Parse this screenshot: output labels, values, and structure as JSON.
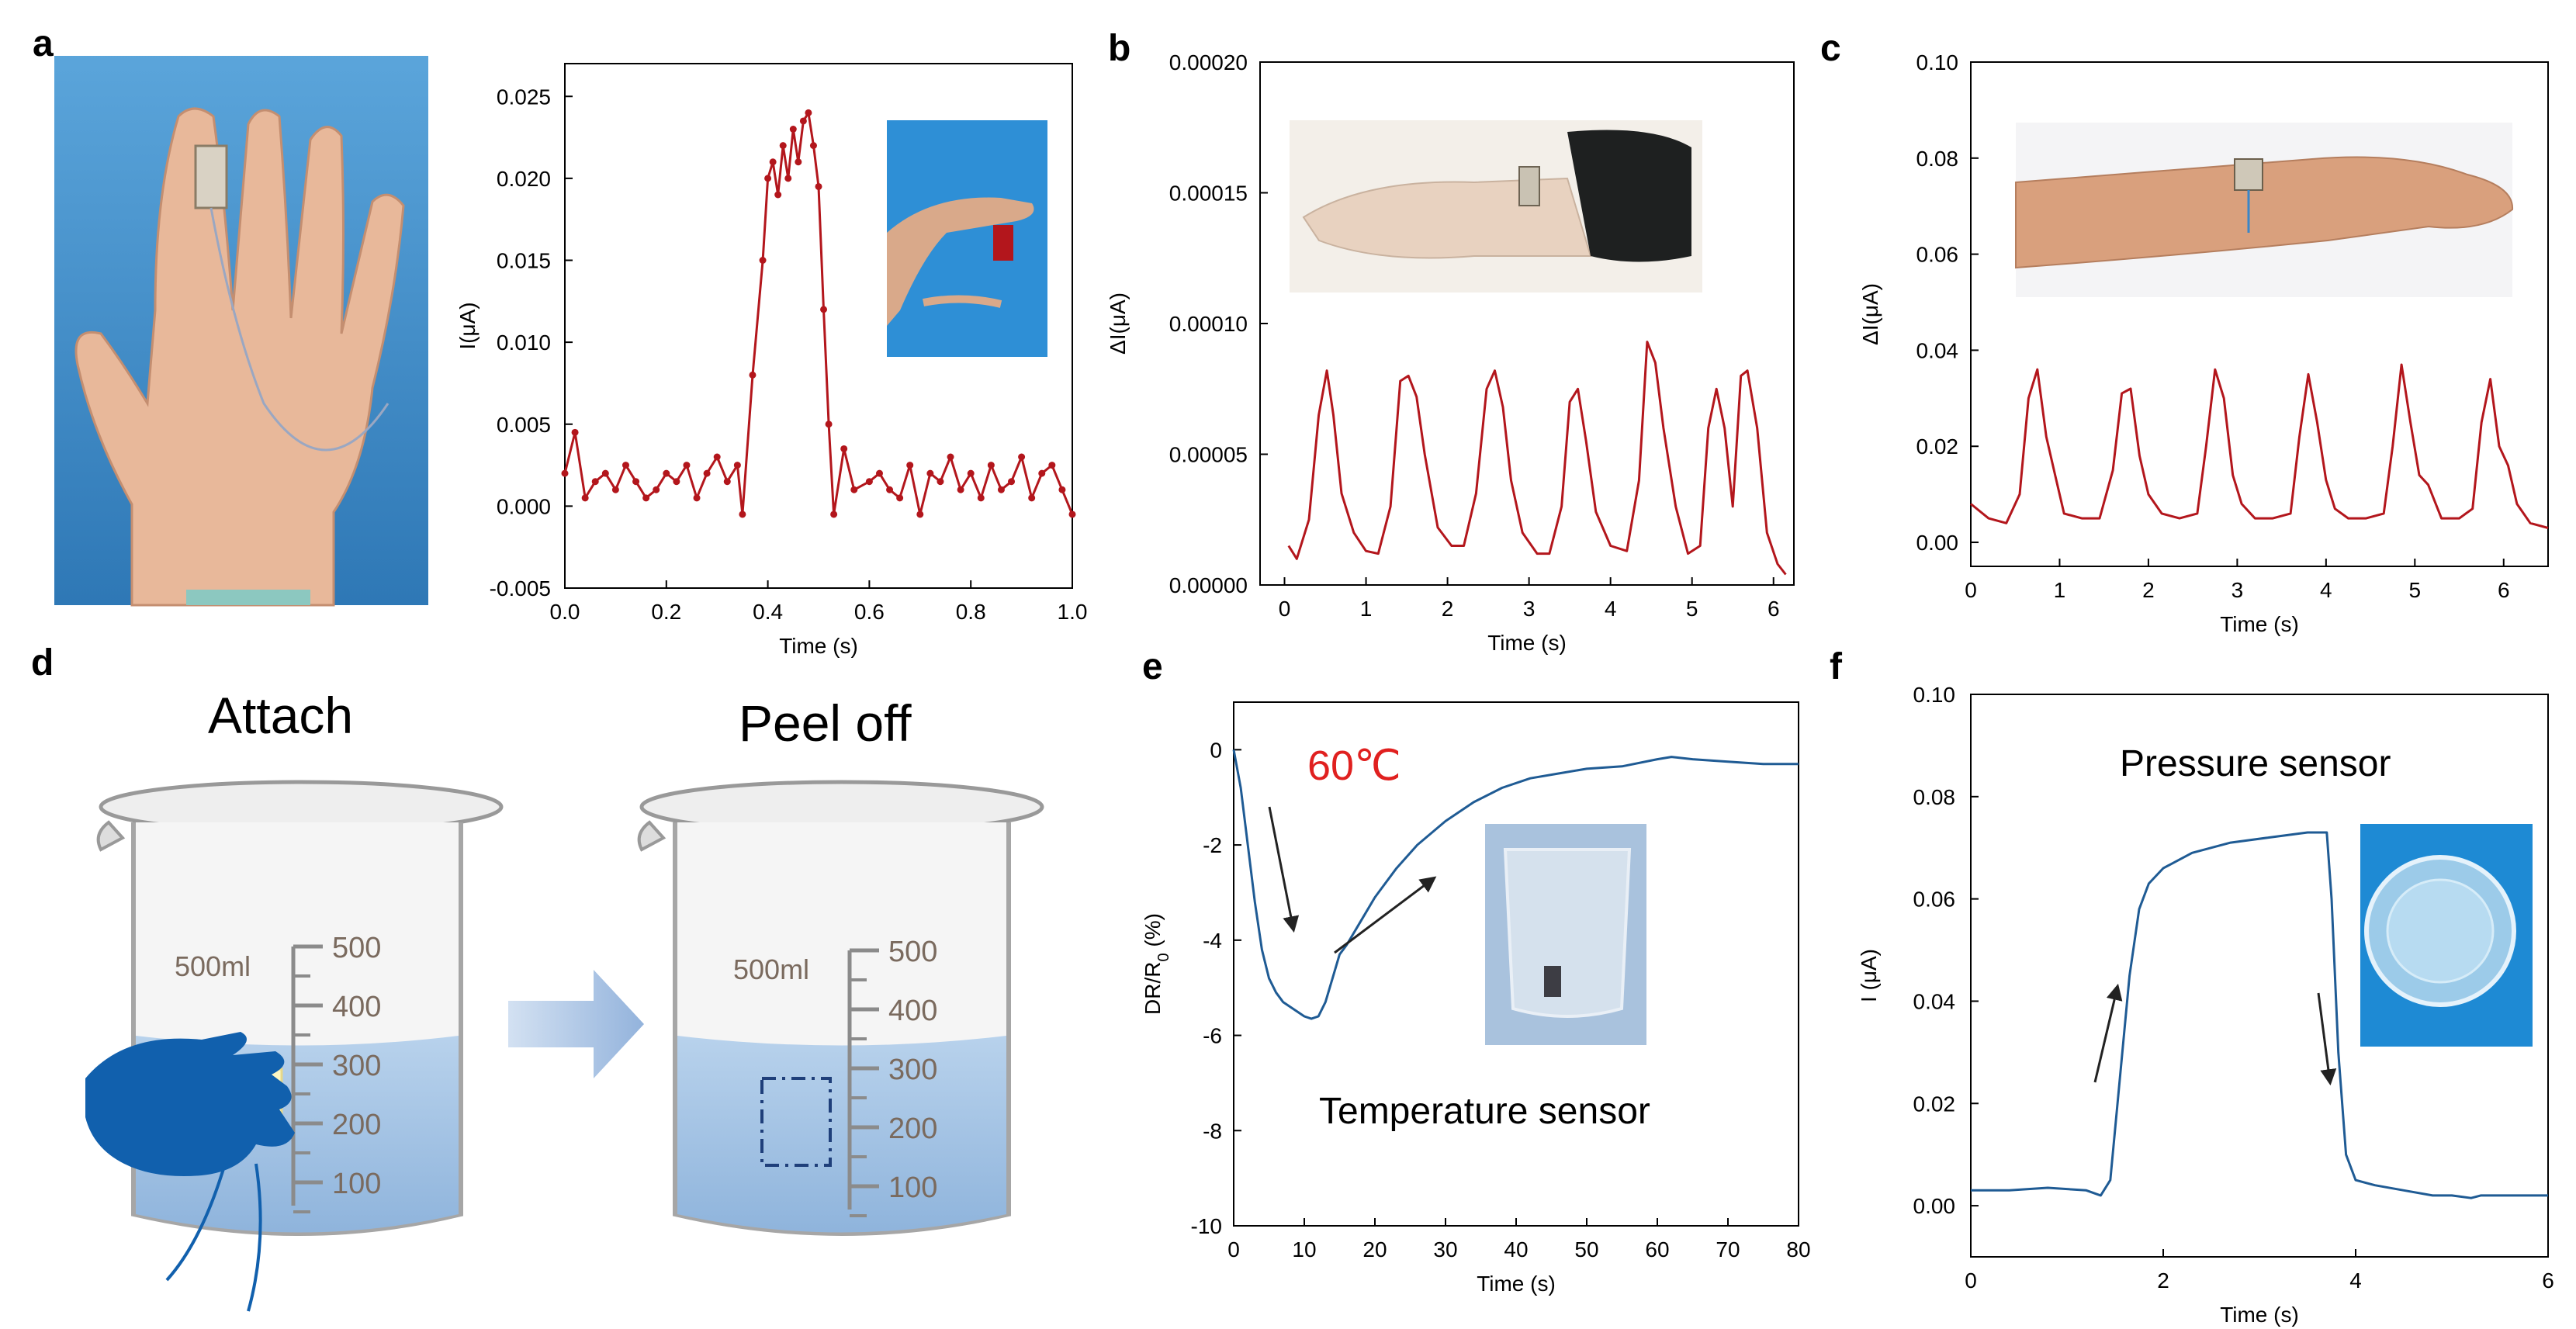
{
  "colors": {
    "red": "#b3161c",
    "blue": "#1f5b94",
    "water": "#a7c5e4",
    "hand": "#1160ad",
    "arrow": "#b9cce6",
    "inset_bg": "#2e8fd6",
    "red_annot": "#e0201f"
  },
  "panel_labels": {
    "a": "a",
    "b": "b",
    "c": "c",
    "d": "d",
    "e": "e",
    "f": "f"
  },
  "panel_d": {
    "attach_label": "Attach",
    "peel_label": "Peel off",
    "beaker_volume": "500ml",
    "scale_marks": [
      "500",
      "400",
      "300",
      "200",
      "100"
    ]
  },
  "chart_data": [
    {
      "id": "a",
      "type": "line",
      "xlabel": "Time (s)",
      "ylabel": "I(μA)",
      "xlim": [
        0.0,
        1.0
      ],
      "ylim": [
        -0.005,
        0.027
      ],
      "xticks": [
        "0.0",
        "0.2",
        "0.4",
        "0.6",
        "0.8",
        "1.0"
      ],
      "xtick_values": [
        0.0,
        0.2,
        0.4,
        0.6,
        0.8,
        1.0
      ],
      "yticks": [
        "-0.005",
        "0.000",
        "0.005",
        "0.010",
        "0.015",
        "0.020",
        "0.025"
      ],
      "ytick_values": [
        -0.005,
        0.0,
        0.005,
        0.01,
        0.015,
        0.02,
        0.025
      ],
      "markers": true,
      "x": [
        0.0,
        0.02,
        0.04,
        0.06,
        0.08,
        0.1,
        0.12,
        0.14,
        0.16,
        0.18,
        0.2,
        0.22,
        0.24,
        0.26,
        0.28,
        0.3,
        0.32,
        0.34,
        0.35,
        0.37,
        0.39,
        0.4,
        0.41,
        0.42,
        0.43,
        0.44,
        0.45,
        0.46,
        0.47,
        0.48,
        0.49,
        0.5,
        0.51,
        0.52,
        0.53,
        0.55,
        0.57,
        0.6,
        0.62,
        0.64,
        0.66,
        0.68,
        0.7,
        0.72,
        0.74,
        0.76,
        0.78,
        0.8,
        0.82,
        0.84,
        0.86,
        0.88,
        0.9,
        0.92,
        0.94,
        0.96,
        0.98,
        1.0
      ],
      "y": [
        0.002,
        0.0045,
        0.0005,
        0.0015,
        0.002,
        0.001,
        0.0025,
        0.0015,
        0.0005,
        0.001,
        0.002,
        0.0015,
        0.0025,
        0.0005,
        0.002,
        0.003,
        0.0015,
        0.0025,
        -0.0005,
        0.008,
        0.015,
        0.02,
        0.021,
        0.019,
        0.022,
        0.02,
        0.023,
        0.021,
        0.0235,
        0.024,
        0.022,
        0.0195,
        0.012,
        0.005,
        -0.0005,
        0.0035,
        0.001,
        0.0015,
        0.002,
        0.001,
        0.0005,
        0.0025,
        -0.0005,
        0.002,
        0.0015,
        0.003,
        0.001,
        0.002,
        0.0005,
        0.0025,
        0.001,
        0.0015,
        0.003,
        0.0005,
        0.002,
        0.0025,
        0.001,
        -0.0005
      ]
    },
    {
      "id": "b",
      "type": "line",
      "xlabel": "Time (s)",
      "ylabel": "ΔI(μA)",
      "xlim": [
        -0.3,
        6.25
      ],
      "ylim": [
        0.0,
        0.0002
      ],
      "xticks": [
        "0",
        "1",
        "2",
        "3",
        "4",
        "5",
        "6"
      ],
      "xtick_values": [
        0,
        1,
        2,
        3,
        4,
        5,
        6
      ],
      "yticks": [
        "0.00000",
        "0.00005",
        "0.00010",
        "0.00015",
        "0.00020"
      ],
      "ytick_values": [
        0.0,
        5e-05,
        0.0001,
        0.00015,
        0.0002
      ],
      "markers": false,
      "x": [
        0.05,
        0.15,
        0.3,
        0.42,
        0.52,
        0.6,
        0.7,
        0.85,
        1.0,
        1.15,
        1.3,
        1.42,
        1.52,
        1.62,
        1.72,
        1.88,
        2.05,
        2.2,
        2.35,
        2.48,
        2.58,
        2.68,
        2.78,
        2.92,
        3.1,
        3.25,
        3.4,
        3.5,
        3.6,
        3.7,
        3.82,
        4.0,
        4.2,
        4.35,
        4.45,
        4.55,
        4.65,
        4.8,
        4.95,
        5.1,
        5.2,
        5.3,
        5.4,
        5.5,
        5.6,
        5.68,
        5.8,
        5.92,
        6.05,
        6.15
      ],
      "y": [
        1.5e-05,
        1e-05,
        2.5e-05,
        6.5e-05,
        8.2e-05,
        6.5e-05,
        3.5e-05,
        2e-05,
        1.3e-05,
        1.2e-05,
        3e-05,
        7.8e-05,
        8e-05,
        7.2e-05,
        5e-05,
        2.2e-05,
        1.5e-05,
        1.5e-05,
        3.5e-05,
        7.5e-05,
        8.2e-05,
        6.8e-05,
        4e-05,
        2e-05,
        1.2e-05,
        1.2e-05,
        3e-05,
        7e-05,
        7.5e-05,
        5.5e-05,
        2.8e-05,
        1.5e-05,
        1.3e-05,
        4e-05,
        9.3e-05,
        8.5e-05,
        6e-05,
        3e-05,
        1.2e-05,
        1.5e-05,
        6e-05,
        7.5e-05,
        6e-05,
        3e-05,
        8e-05,
        8.2e-05,
        6e-05,
        2e-05,
        8e-06,
        4e-06
      ]
    },
    {
      "id": "c",
      "type": "line",
      "xlabel": "Time (s)",
      "ylabel": "ΔI(μA)",
      "xlim": [
        0.0,
        6.5
      ],
      "ylim": [
        -0.005,
        0.1
      ],
      "xticks": [
        "0",
        "1",
        "2",
        "3",
        "4",
        "5",
        "6"
      ],
      "xtick_values": [
        0,
        1,
        2,
        3,
        4,
        5,
        6
      ],
      "yticks": [
        "0.00",
        "0.02",
        "0.04",
        "0.06",
        "0.08",
        "0.10"
      ],
      "ytick_values": [
        0.0,
        0.02,
        0.04,
        0.06,
        0.08,
        0.1
      ],
      "markers": false,
      "x": [
        0.0,
        0.2,
        0.4,
        0.55,
        0.65,
        0.75,
        0.85,
        0.95,
        1.05,
        1.25,
        1.45,
        1.6,
        1.7,
        1.8,
        1.9,
        2.0,
        2.15,
        2.35,
        2.55,
        2.65,
        2.75,
        2.85,
        2.95,
        3.05,
        3.2,
        3.4,
        3.6,
        3.7,
        3.8,
        3.9,
        4.0,
        4.1,
        4.25,
        4.45,
        4.65,
        4.75,
        4.85,
        4.95,
        5.05,
        5.15,
        5.3,
        5.5,
        5.65,
        5.75,
        5.85,
        5.95,
        6.05,
        6.15,
        6.3,
        6.5
      ],
      "y": [
        0.008,
        0.005,
        0.004,
        0.01,
        0.03,
        0.036,
        0.022,
        0.014,
        0.006,
        0.005,
        0.005,
        0.015,
        0.031,
        0.032,
        0.018,
        0.01,
        0.006,
        0.005,
        0.006,
        0.02,
        0.036,
        0.03,
        0.014,
        0.008,
        0.005,
        0.005,
        0.006,
        0.022,
        0.035,
        0.025,
        0.013,
        0.007,
        0.005,
        0.005,
        0.006,
        0.02,
        0.037,
        0.025,
        0.014,
        0.012,
        0.005,
        0.005,
        0.007,
        0.025,
        0.034,
        0.02,
        0.016,
        0.008,
        0.004,
        0.003
      ]
    },
    {
      "id": "e",
      "type": "line",
      "xlabel": "Time (s)",
      "ylabel": "DR/R",
      "ylabel_sub": "0",
      "ylabel_suffix": " (%)",
      "annotation_temp": "60℃",
      "annotation_label": "Temperature sensor",
      "xlim": [
        0,
        80
      ],
      "ylim": [
        -10,
        1
      ],
      "xticks": [
        "0",
        "10",
        "20",
        "30",
        "40",
        "50",
        "60",
        "70",
        "80"
      ],
      "xtick_values": [
        0,
        10,
        20,
        30,
        40,
        50,
        60,
        70,
        80
      ],
      "yticks": [
        "-10",
        "-8",
        "-6",
        "-4",
        "-2",
        "0"
      ],
      "ytick_values": [
        -10,
        -8,
        -6,
        -4,
        -2,
        0
      ],
      "markers": false,
      "x": [
        0,
        1,
        2,
        3,
        4,
        5,
        6,
        7,
        8,
        9,
        10,
        11,
        12,
        13,
        14,
        15,
        16,
        18,
        20,
        23,
        26,
        30,
        34,
        38,
        42,
        46,
        50,
        55,
        60,
        62,
        65,
        70,
        75,
        80
      ],
      "y": [
        0,
        -0.8,
        -2.0,
        -3.2,
        -4.2,
        -4.8,
        -5.1,
        -5.3,
        -5.4,
        -5.5,
        -5.6,
        -5.65,
        -5.6,
        -5.3,
        -4.8,
        -4.3,
        -4.1,
        -3.6,
        -3.1,
        -2.5,
        -2.0,
        -1.5,
        -1.1,
        -0.8,
        -0.6,
        -0.5,
        -0.4,
        -0.35,
        -0.2,
        -0.15,
        -0.2,
        -0.25,
        -0.3,
        -0.3
      ]
    },
    {
      "id": "f",
      "type": "line",
      "xlabel": "Time (s)",
      "ylabel": "I (μA)",
      "annotation_label": "Pressure sensor",
      "xlim": [
        0,
        6
      ],
      "ylim": [
        -0.01,
        0.1
      ],
      "xticks": [
        "0",
        "2",
        "4",
        "6"
      ],
      "xtick_values": [
        0,
        2,
        4,
        6
      ],
      "yticks": [
        "0.00",
        "0.02",
        "0.04",
        "0.06",
        "0.08",
        "0.10"
      ],
      "ytick_values": [
        0.0,
        0.02,
        0.04,
        0.06,
        0.08,
        0.1
      ],
      "markers": false,
      "x": [
        0.0,
        0.4,
        0.8,
        1.2,
        1.35,
        1.45,
        1.55,
        1.65,
        1.75,
        1.85,
        2.0,
        2.3,
        2.7,
        3.1,
        3.5,
        3.7,
        3.75,
        3.82,
        3.9,
        4.0,
        4.2,
        4.5,
        4.8,
        5.0,
        5.2,
        5.3,
        5.5,
        5.8,
        6.0
      ],
      "y": [
        0.003,
        0.003,
        0.0035,
        0.003,
        0.002,
        0.005,
        0.025,
        0.045,
        0.058,
        0.063,
        0.066,
        0.069,
        0.071,
        0.072,
        0.073,
        0.073,
        0.06,
        0.03,
        0.01,
        0.005,
        0.004,
        0.003,
        0.002,
        0.002,
        0.0015,
        0.002,
        0.002,
        0.002,
        0.002
      ]
    }
  ]
}
